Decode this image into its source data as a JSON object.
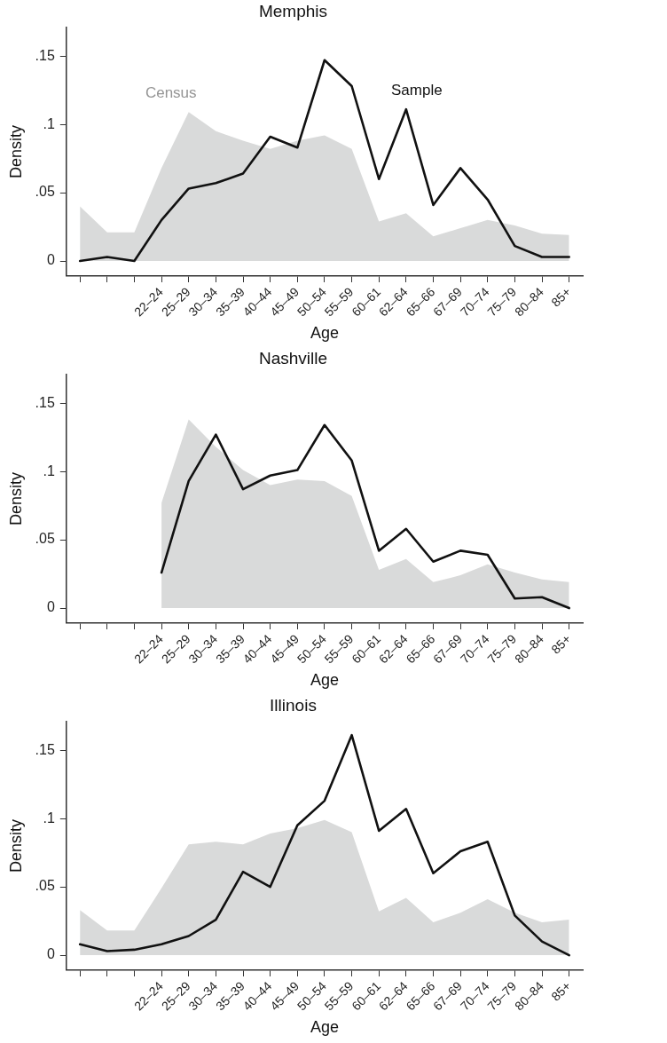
{
  "chart_data": [
    {
      "type": "line",
      "title": "Memphis",
      "xlabel": "Age",
      "ylabel": "Density",
      "ylim": [
        -0.011,
        0.171
      ],
      "categories": [
        null,
        null,
        null,
        "22–24",
        "25–29",
        "30–34",
        "35–39",
        "40–44",
        "45–49",
        "50–54",
        "55–59",
        "60–61",
        "62–64",
        "65–66",
        "67–69",
        "70–74",
        "75–79",
        "80–84",
        "85+"
      ],
      "yticks": [
        {
          "value": 0,
          "label": "0"
        },
        {
          "value": 0.05,
          "label": ".05"
        },
        {
          "value": 0.1,
          "label": ".1"
        },
        {
          "value": 0.15,
          "label": ".15"
        }
      ],
      "series": [
        {
          "name": "Census",
          "type": "area",
          "color": "#d9dada",
          "values": [
            0.04,
            0.021,
            0.021,
            0.068,
            0.109,
            0.095,
            0.088,
            0.082,
            0.088,
            0.092,
            0.082,
            0.029,
            0.035,
            0.018,
            0.024,
            0.03,
            0.026,
            0.02,
            0.019
          ]
        },
        {
          "name": "Sample",
          "type": "line",
          "color": "#111111",
          "values": [
            0,
            0.003,
            0,
            0.03,
            0.053,
            0.057,
            0.064,
            0.091,
            0.083,
            0.147,
            0.128,
            0.06,
            0.111,
            0.041,
            0.068,
            0.045,
            0.011,
            0.003,
            0.003
          ]
        }
      ]
    },
    {
      "type": "line",
      "title": "Nashville",
      "xlabel": "Age",
      "ylabel": "Density",
      "ylim": [
        -0.011,
        0.171
      ],
      "categories": [
        null,
        null,
        null,
        "22–24",
        "25–29",
        "30–34",
        "35–39",
        "40–44",
        "45–49",
        "50–54",
        "55–59",
        "60–61",
        "62–64",
        "65–66",
        "67–69",
        "70–74",
        "75–79",
        "80–84",
        "85+"
      ],
      "yticks": [
        {
          "value": 0,
          "label": "0"
        },
        {
          "value": 0.05,
          "label": ".05"
        },
        {
          "value": 0.1,
          "label": ".1"
        },
        {
          "value": 0.15,
          "label": ".15"
        }
      ],
      "series": [
        {
          "type": "area",
          "color": "#d9dada",
          "values": [
            null,
            null,
            null,
            0.077,
            0.138,
            0.118,
            0.101,
            0.09,
            0.094,
            0.093,
            0.082,
            0.028,
            0.036,
            0.019,
            0.024,
            0.032,
            0.026,
            0.021,
            0.019
          ]
        },
        {
          "type": "line",
          "color": "#111111",
          "values": [
            null,
            null,
            null,
            0.026,
            0.093,
            0.127,
            0.087,
            0.097,
            0.101,
            0.134,
            0.108,
            0.042,
            0.058,
            0.034,
            0.042,
            0.039,
            0.007,
            0.008,
            0
          ]
        }
      ]
    },
    {
      "type": "line",
      "title": "Illinois",
      "xlabel": "Age",
      "ylabel": "Density",
      "ylim": [
        -0.011,
        0.171
      ],
      "categories": [
        null,
        null,
        null,
        "22–24",
        "25–29",
        "30–34",
        "35–39",
        "40–44",
        "45–49",
        "50–54",
        "55–59",
        "60–61",
        "62–64",
        "65–66",
        "67–69",
        "70–74",
        "75–79",
        "80–84",
        "85+"
      ],
      "yticks": [
        {
          "value": 0,
          "label": "0"
        },
        {
          "value": 0.05,
          "label": ".05"
        },
        {
          "value": 0.1,
          "label": ".1"
        },
        {
          "value": 0.15,
          "label": ".15"
        }
      ],
      "series": [
        {
          "type": "area",
          "color": "#d9dada",
          "values": [
            0.033,
            0.018,
            0.018,
            0.049,
            0.081,
            0.083,
            0.081,
            0.089,
            0.093,
            0.099,
            0.09,
            0.032,
            0.042,
            0.024,
            0.031,
            0.041,
            0.031,
            0.024,
            0.026
          ]
        },
        {
          "type": "line",
          "color": "#111111",
          "values": [
            0.008,
            0.003,
            0.004,
            0.008,
            0.014,
            0.026,
            0.061,
            0.05,
            0.095,
            0.113,
            0.161,
            0.091,
            0.107,
            0.06,
            0.076,
            0.083,
            0.029,
            0.01,
            0
          ]
        }
      ]
    }
  ]
}
